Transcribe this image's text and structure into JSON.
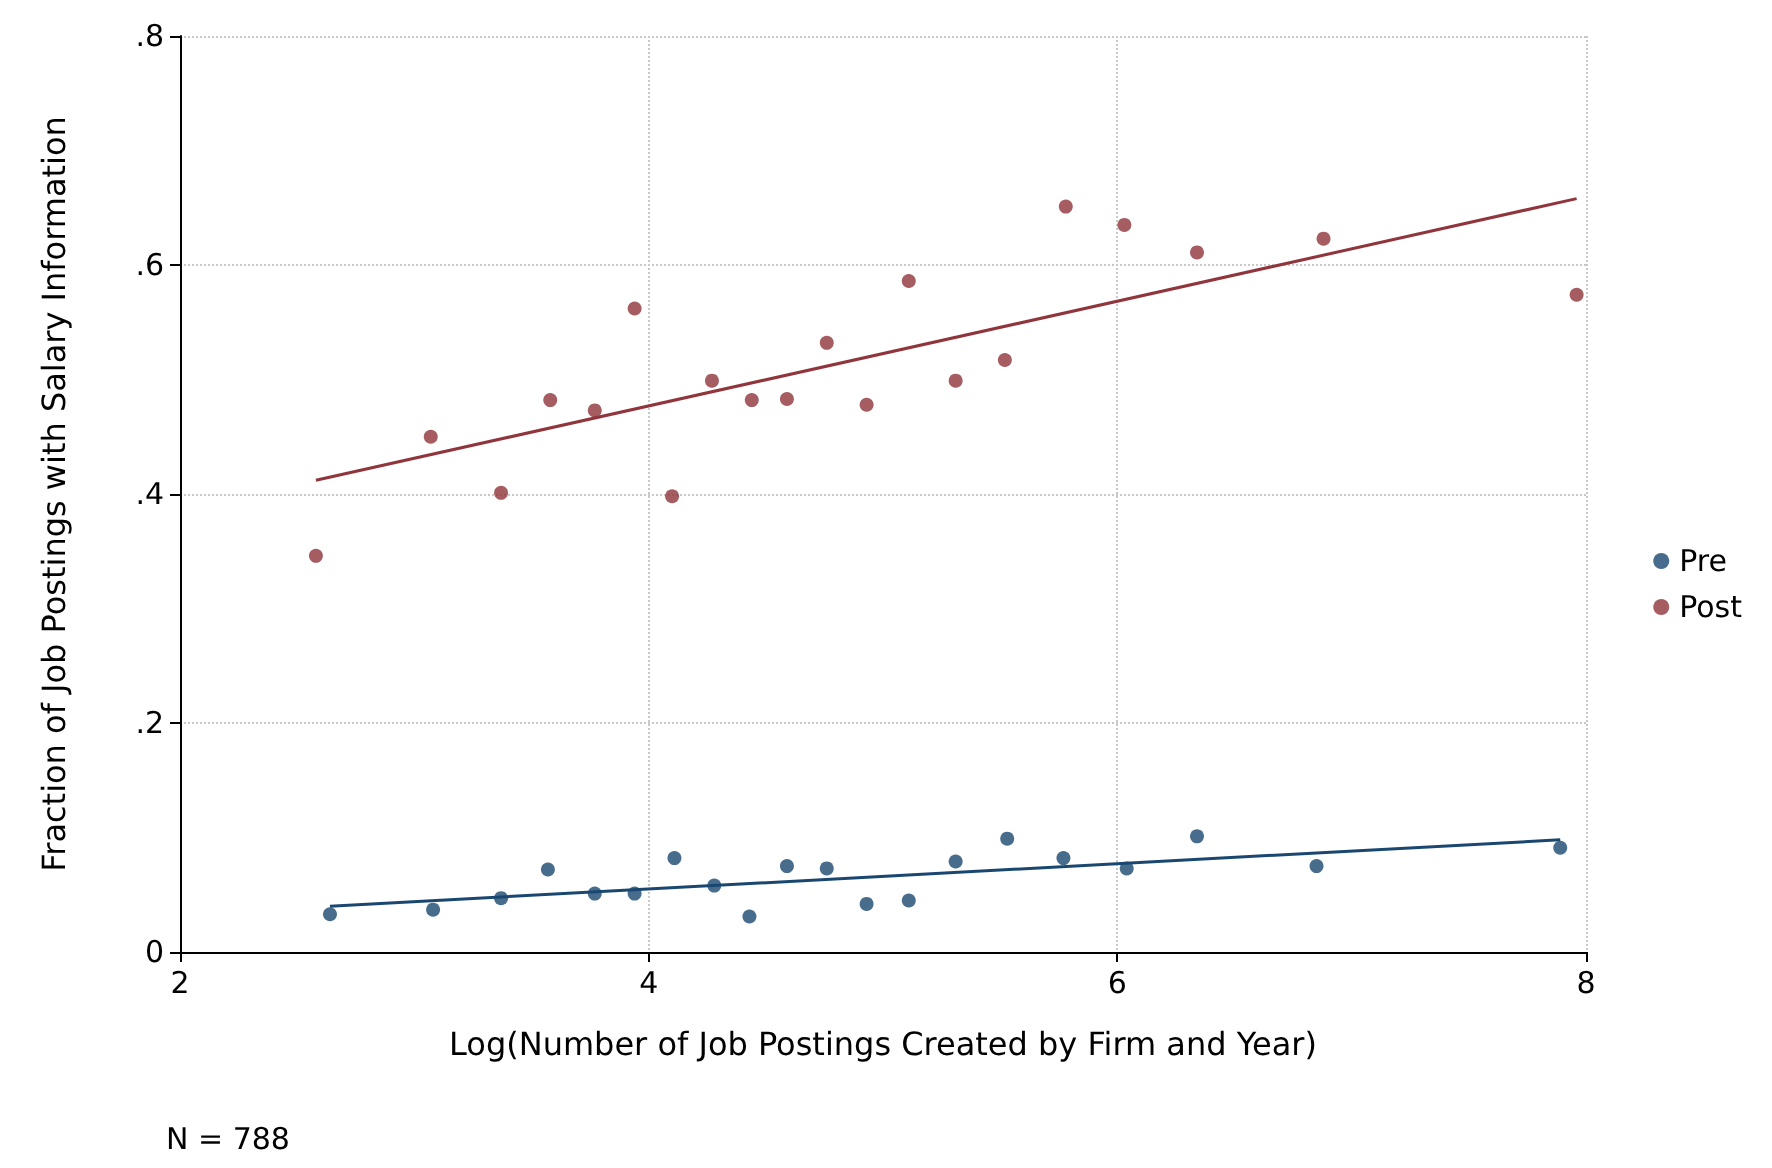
{
  "chart_data": {
    "type": "scatter",
    "xlabel": "Log(Number of Job Postings Created by Firm and Year)",
    "ylabel": "Fraction of Job Postings with Salary Information",
    "annotations": [
      "N = 788"
    ],
    "series": [
      {
        "name": "Pre",
        "color": "#1a476f",
        "x": [
          2.64,
          3.08,
          3.37,
          3.57,
          3.77,
          3.94,
          4.11,
          4.28,
          4.43,
          4.59,
          4.76,
          4.93,
          5.11,
          5.31,
          5.53,
          5.77,
          6.04,
          6.34,
          6.85,
          7.89
        ],
        "values": [
          0.033,
          0.037,
          0.047,
          0.072,
          0.051,
          0.051,
          0.082,
          0.058,
          0.031,
          0.075,
          0.073,
          0.042,
          0.045,
          0.079,
          0.099,
          0.082,
          0.073,
          0.101,
          0.075,
          0.091
        ]
      },
      {
        "name": "Post",
        "color": "#90353b",
        "x": [
          2.58,
          3.07,
          3.37,
          3.58,
          3.77,
          3.94,
          4.1,
          4.27,
          4.44,
          4.59,
          4.76,
          4.93,
          5.11,
          5.31,
          5.52,
          5.78,
          6.03,
          6.34,
          6.88,
          7.96
        ],
        "values": [
          0.346,
          0.45,
          0.401,
          0.482,
          0.473,
          0.562,
          0.398,
          0.499,
          0.482,
          0.483,
          0.532,
          0.478,
          0.586,
          0.499,
          0.517,
          0.651,
          0.635,
          0.611,
          0.623,
          0.574
        ]
      },
      {
        "type": "line",
        "marker": "none",
        "color": "#1a476f",
        "x": [
          2.64,
          7.89
        ],
        "values": [
          0.04,
          0.098
        ]
      },
      {
        "type": "line",
        "marker": "none",
        "color": "#90353b",
        "x": [
          2.58,
          7.96
        ],
        "values": [
          0.412,
          0.658
        ]
      }
    ],
    "xlim": [
      2,
      8
    ],
    "xticks": [
      2,
      4,
      6,
      8
    ],
    "ylim": [
      0,
      0.8
    ],
    "yticks": [
      {
        "value": 0,
        "label": "0"
      },
      {
        "value": 0.2,
        "label": ".2"
      },
      {
        "value": 0.4,
        "label": ".4"
      },
      {
        "value": 0.6,
        "label": ".6"
      },
      {
        "value": 0.8,
        "label": ".8"
      }
    ],
    "grid": true,
    "legend": "right",
    "marker": "circle"
  }
}
